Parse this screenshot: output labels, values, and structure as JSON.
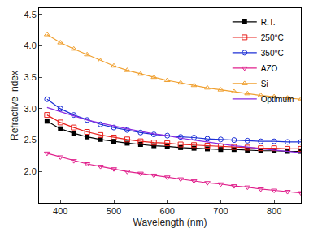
{
  "chart_data": {
    "type": "line",
    "x_label": "Wavelength (nm)",
    "y_label": "Refractive index",
    "x": [
      375,
      400,
      425,
      450,
      475,
      500,
      525,
      550,
      575,
      600,
      625,
      650,
      675,
      700,
      725,
      750,
      775,
      800,
      825,
      850
    ],
    "series": [
      {
        "name": "R.T.",
        "color": "#000000",
        "marker": "square",
        "line_style": "solid",
        "values": [
          2.8,
          2.68,
          2.61,
          2.55,
          2.51,
          2.48,
          2.45,
          2.43,
          2.41,
          2.4,
          2.38,
          2.37,
          2.36,
          2.35,
          2.35,
          2.34,
          2.33,
          2.33,
          2.32,
          2.32
        ]
      },
      {
        "name": "250°C",
        "color": "#e8201c",
        "marker": "square-open",
        "line_style": "solid",
        "values": [
          2.9,
          2.78,
          2.7,
          2.63,
          2.58,
          2.54,
          2.51,
          2.48,
          2.46,
          2.45,
          2.43,
          2.42,
          2.41,
          2.4,
          2.39,
          2.38,
          2.37,
          2.37,
          2.36,
          2.36
        ]
      },
      {
        "name": "350°C",
        "color": "#1c2fd6",
        "marker": "circle-open",
        "line_style": "solid",
        "values": [
          3.15,
          3.0,
          2.9,
          2.82,
          2.75,
          2.7,
          2.66,
          2.62,
          2.59,
          2.57,
          2.55,
          2.54,
          2.52,
          2.51,
          2.5,
          2.49,
          2.48,
          2.48,
          2.47,
          2.47
        ]
      },
      {
        "name": "AZO",
        "color": "#e0208c",
        "marker": "triangle-down-open",
        "line_style": "solid",
        "values": [
          2.29,
          2.23,
          2.17,
          2.12,
          2.08,
          2.04,
          2.0,
          1.97,
          1.94,
          1.91,
          1.88,
          1.85,
          1.82,
          1.8,
          1.77,
          1.75,
          1.72,
          1.7,
          1.68,
          1.66
        ]
      },
      {
        "name": "Si",
        "color": "#f0a030",
        "marker": "triangle-up-open",
        "line_style": "solid",
        "values": [
          4.18,
          4.05,
          3.95,
          3.86,
          3.76,
          3.68,
          3.61,
          3.55,
          3.5,
          3.45,
          3.41,
          3.37,
          3.33,
          3.3,
          3.27,
          3.24,
          3.21,
          3.19,
          3.17,
          3.15
        ]
      },
      {
        "name": "Optimum",
        "color": "#8a2be2",
        "marker": "none",
        "line_style": "solid",
        "values": [
          3.02,
          2.95,
          2.88,
          2.82,
          2.77,
          2.72,
          2.68,
          2.64,
          2.6,
          2.57,
          2.53,
          2.5,
          2.47,
          2.44,
          2.41,
          2.39,
          2.36,
          2.34,
          2.32,
          2.3
        ]
      }
    ],
    "xlim": [
      360,
      850
    ],
    "xticks": [
      400,
      500,
      600,
      700,
      800
    ],
    "ylim": [
      1.5,
      4.6
    ],
    "yticks": [
      {
        "value": 2,
        "label": "2.0"
      },
      2.5,
      {
        "value": 3,
        "label": "3.0"
      },
      3.5,
      {
        "value": 4,
        "label": "4.0"
      },
      4.5
    ],
    "grid": false,
    "legend": "top right"
  }
}
